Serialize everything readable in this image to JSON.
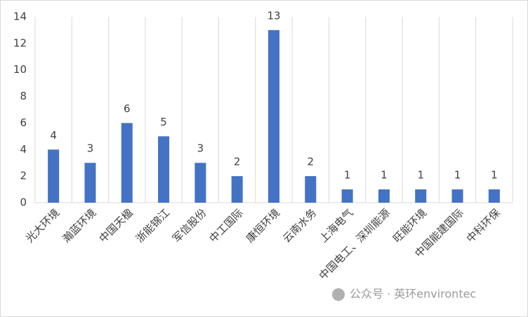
{
  "chart_data": {
    "type": "bar",
    "categories": [
      "光大环境",
      "瀚蓝环境",
      "中国天楹",
      "浙能锦江",
      "军信股份",
      "中工国际",
      "康恒环境",
      "云南水务",
      "上海电气",
      "中国电工、深圳能源",
      "旺能环境",
      "中国能建国际",
      "中科环保"
    ],
    "values": [
      4,
      3,
      6,
      5,
      3,
      2,
      13,
      2,
      1,
      1,
      1,
      1,
      1
    ],
    "color": "#4472c4",
    "ylim": [
      0,
      14
    ],
    "yticks": [
      0,
      2,
      4,
      6,
      8,
      10,
      12,
      14
    ],
    "grid": "x",
    "watermark": "公众号 · 英环environtec"
  }
}
